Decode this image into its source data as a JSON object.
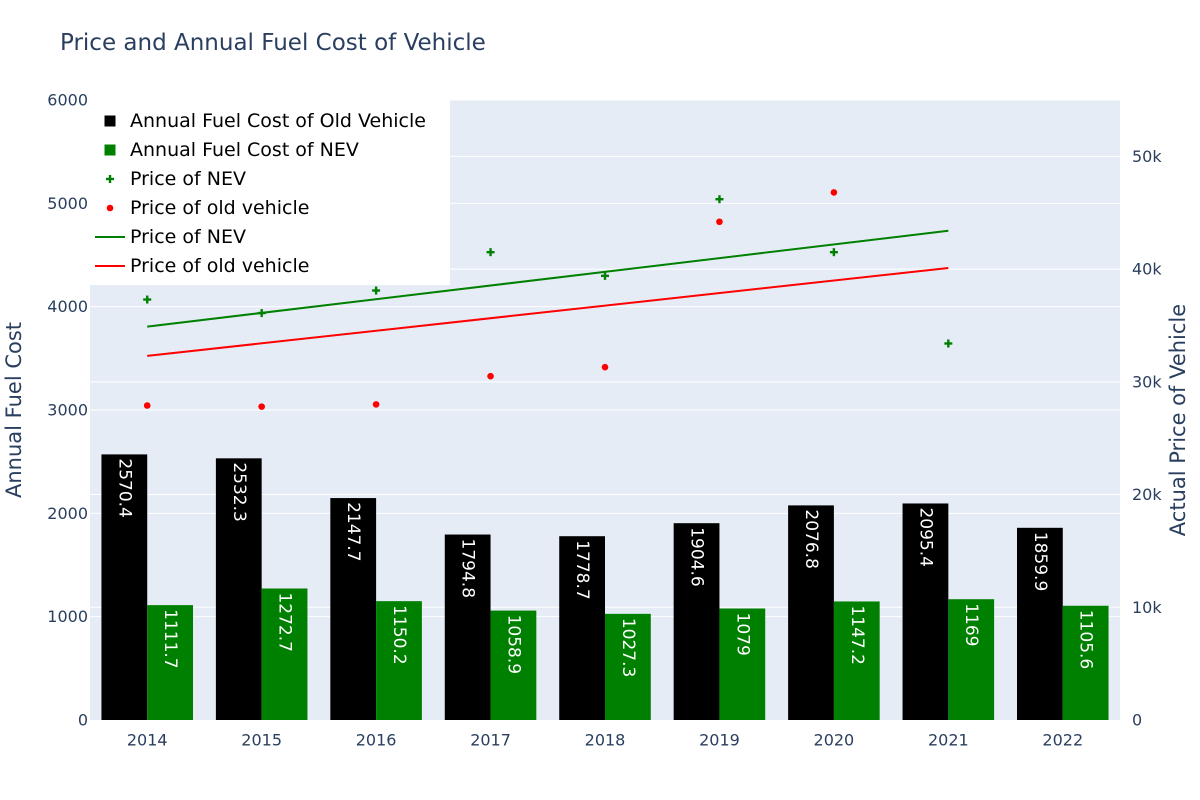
{
  "chart_data": {
    "type": "bar",
    "title": "Price and Annual Fuel Cost of Vehicle",
    "categories": [
      "2014",
      "2015",
      "2016",
      "2017",
      "2018",
      "2019",
      "2020",
      "2021",
      "2022"
    ],
    "y_left": {
      "label": "Annual Fuel Cost",
      "range": [
        0,
        6000
      ],
      "ticks": [
        0,
        1000,
        2000,
        3000,
        4000,
        5000,
        6000
      ]
    },
    "y_right": {
      "label": "Actual Price of Vehicle",
      "range": [
        0,
        55000
      ],
      "ticks": [
        0,
        10000,
        20000,
        30000,
        40000,
        50000
      ],
      "tick_labels": [
        "0",
        "10k",
        "20k",
        "30k",
        "40k",
        "50k"
      ]
    },
    "bar_series": [
      {
        "name": "Annual Fuel Cost of Old Vehicle",
        "color": "#000000",
        "values": [
          2570.4,
          2532.3,
          2147.7,
          1794.8,
          1778.7,
          1904.6,
          2076.8,
          2095.4,
          1859.9
        ],
        "labels": [
          "2570.4",
          "2532.3",
          "2147.7",
          "1794.8",
          "1778.7",
          "1904.6",
          "2076.8",
          "2095.4",
          "1859.9"
        ]
      },
      {
        "name": "Annual Fuel Cost of NEV",
        "color": "#008000",
        "values": [
          1111.7,
          1272.7,
          1150.2,
          1058.9,
          1027.3,
          1079,
          1147.2,
          1169,
          1105.6
        ],
        "labels": [
          "1111.7",
          "1272.7",
          "1150.2",
          "1058.9",
          "1027.3",
          "1079",
          "1147.2",
          "1169",
          "1105.6"
        ]
      }
    ],
    "scatter_series": [
      {
        "name": "Price of NEV",
        "color": "#008000",
        "marker": "cross",
        "categories": [
          "2014",
          "2015",
          "2016",
          "2017",
          "2018",
          "2019",
          "2020",
          "2021"
        ],
        "values": [
          37300,
          36100,
          38100,
          41500,
          39400,
          46200,
          41500,
          33400
        ]
      },
      {
        "name": "Price of old vehicle",
        "color": "#ff0000",
        "marker": "circle",
        "categories": [
          "2014",
          "2015",
          "2016",
          "2017",
          "2018",
          "2019",
          "2020"
        ],
        "values": [
          27900,
          27800,
          28000,
          30500,
          31300,
          44200,
          46800
        ]
      }
    ],
    "line_series": [
      {
        "name": "Price of NEV",
        "color": "#008000",
        "from": {
          "category": "2014",
          "value": 34900
        },
        "to": {
          "category": "2021",
          "value": 43400
        }
      },
      {
        "name": "Price of old vehicle",
        "color": "#ff0000",
        "from": {
          "category": "2014",
          "value": 32300
        },
        "to": {
          "category": "2021",
          "value": 40100
        }
      }
    ],
    "legend": {
      "position": "top-left",
      "items": [
        {
          "label": "Annual Fuel Cost of Old Vehicle",
          "symbol": "square",
          "color": "#000000"
        },
        {
          "label": "Annual Fuel Cost of NEV",
          "symbol": "square",
          "color": "#008000"
        },
        {
          "label": "Price of NEV",
          "symbol": "cross",
          "color": "#008000"
        },
        {
          "label": "Price of old vehicle",
          "symbol": "circle",
          "color": "#ff0000"
        },
        {
          "label": "Price of NEV",
          "symbol": "line",
          "color": "#008000"
        },
        {
          "label": "Price of old vehicle",
          "symbol": "line",
          "color": "#ff0000"
        }
      ]
    },
    "grid": true,
    "plot_background": "#e5ecf6"
  }
}
